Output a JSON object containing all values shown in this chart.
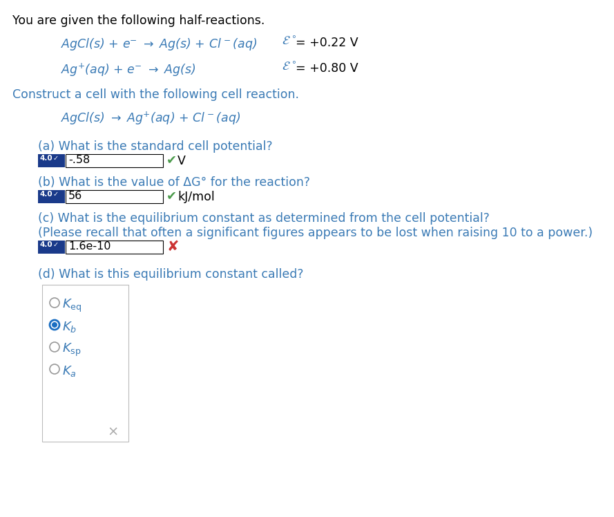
{
  "bg_color": "#ffffff",
  "text_color": "#000000",
  "teal_color": "#3a7ab5",
  "blue_badge_color": "#1a3a8a",
  "green_check_color": "#4a9a4a",
  "red_x_color": "#cc3333",
  "gray_x_color": "#aaaaaa",
  "radio_selected_color": "#1a6ec2",
  "radio_unselected_color": "#999999",
  "line1_intro": "You are given the following half-reactions.",
  "construct_text": "Construct a cell with the following cell reaction.",
  "qa_label": "(a) What is the standard cell potential?",
  "qa_answer": "-.58",
  "qa_unit": "V",
  "qb_label": "(b) What is the value of ΔG° for the reaction?",
  "qb_answer": "56",
  "qb_unit": "kJ/mol",
  "qc_label": "(c) What is the equilibrium constant as determined from the cell potential?",
  "qc_label2": "(Please recall that often a significant figures appears to be lost when raising 10 to a power.)",
  "qc_answer": "1.6e-10",
  "qd_label": "(d) What is this equilibrium constant called?",
  "radio_selected": 1,
  "figsize": [
    8.89,
    7.48
  ],
  "dpi": 100
}
